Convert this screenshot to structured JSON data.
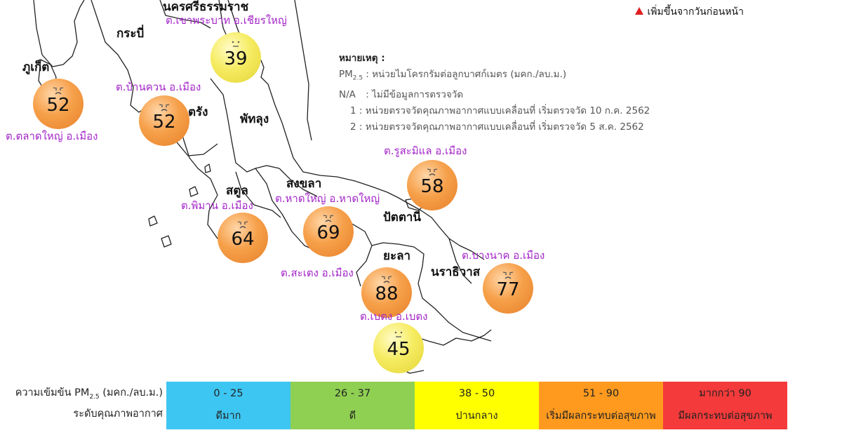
{
  "legend_top": {
    "label": "เพิ่มขึ้นจากวันก่อนหน้า",
    "icon": "red-triangle-up"
  },
  "notes": {
    "title": "หมายเหตุ :",
    "pm_key": "PM",
    "pm_sub": "2.5",
    "pm_desc": ": หน่วยไมโครกรัมต่อลูกบาศก์เมตร (มคก./ลบ.ม.)",
    "na_key": "N/A",
    "na_desc": ":  ไม่มีข้อมูลการตรวจวัด",
    "note1": "1 : หน่วยตรวจวัดคุณภาพอากาศแบบเคลื่อนที่ เริ่มตรวจวัด 10 ก.ค. 2562",
    "note2": "2 : หน่วยตรวจวัดคุณภาพอากาศแบบเคลื่อนที่ เริ่มตรวจวัด 5 ส.ค. 2562"
  },
  "provinces": {
    "nakhon": "นครศรีธรรมราช",
    "krabi": "กระบี่",
    "phuket": "ภูเก็ต",
    "trang": "ตรัง",
    "phatthalung": "พัทลุง",
    "satun": "สตูล",
    "songkhla": "สงขลา",
    "pattani": "ปัตตานี",
    "yala": "ยะลา",
    "narathiwat": "นราธิวาส"
  },
  "stations": [
    {
      "name": "ต.เขาพระบาท อ.เชียรใหญ่",
      "value": "39",
      "level": "yellow"
    },
    {
      "name": "ต.ตลาดใหญ่ อ.เมือง",
      "value": "52",
      "level": "orange"
    },
    {
      "name": "ต.บ้านควน อ.เมือง",
      "value": "52",
      "level": "orange"
    },
    {
      "name": "ต.รูสะมิแล อ.เมือง",
      "value": "58",
      "level": "orange"
    },
    {
      "name": "ต.พิมาน อ.เมือง",
      "value": "64",
      "level": "orange"
    },
    {
      "name": "ต.หาดใหญ่ อ.หาดใหญ่",
      "value": "69",
      "level": "orange"
    },
    {
      "name": "ต.สะเตง อ.เมือง",
      "value": "88",
      "level": "orange"
    },
    {
      "name": "ต.บางนาค อ.เมือง",
      "value": "77",
      "level": "orange"
    },
    {
      "name": "ต.เบตง อ.เบตง",
      "value": "45",
      "level": "yellow"
    }
  ],
  "scale": {
    "label_row1_prefix": "ความเข้มข้น PM",
    "label_row1_sub": "2.5",
    "label_row1_suffix": " (มคก./ลบ.ม.)",
    "label_row2": "ระดับคุณภาพอากาศ",
    "segments": [
      {
        "range": "0 - 25",
        "level": "ดีมาก",
        "color": "#3ec6f2"
      },
      {
        "range": "26 - 37",
        "level": "ดี",
        "color": "#8fd052"
      },
      {
        "range": "38 - 50",
        "level": "ปานกลาง",
        "color": "#ffff00"
      },
      {
        "range": "51 - 90",
        "level": "เริ่มมีผลกระทบต่อสุขภาพ",
        "color": "#ff9a1f"
      },
      {
        "range": "มากกว่า 90",
        "level": "มีผลกระทบต่อสุขภาพ",
        "color": "#f43a3a"
      }
    ]
  },
  "colors": {
    "station_text": "#a326c8",
    "map_line": "#222222"
  }
}
